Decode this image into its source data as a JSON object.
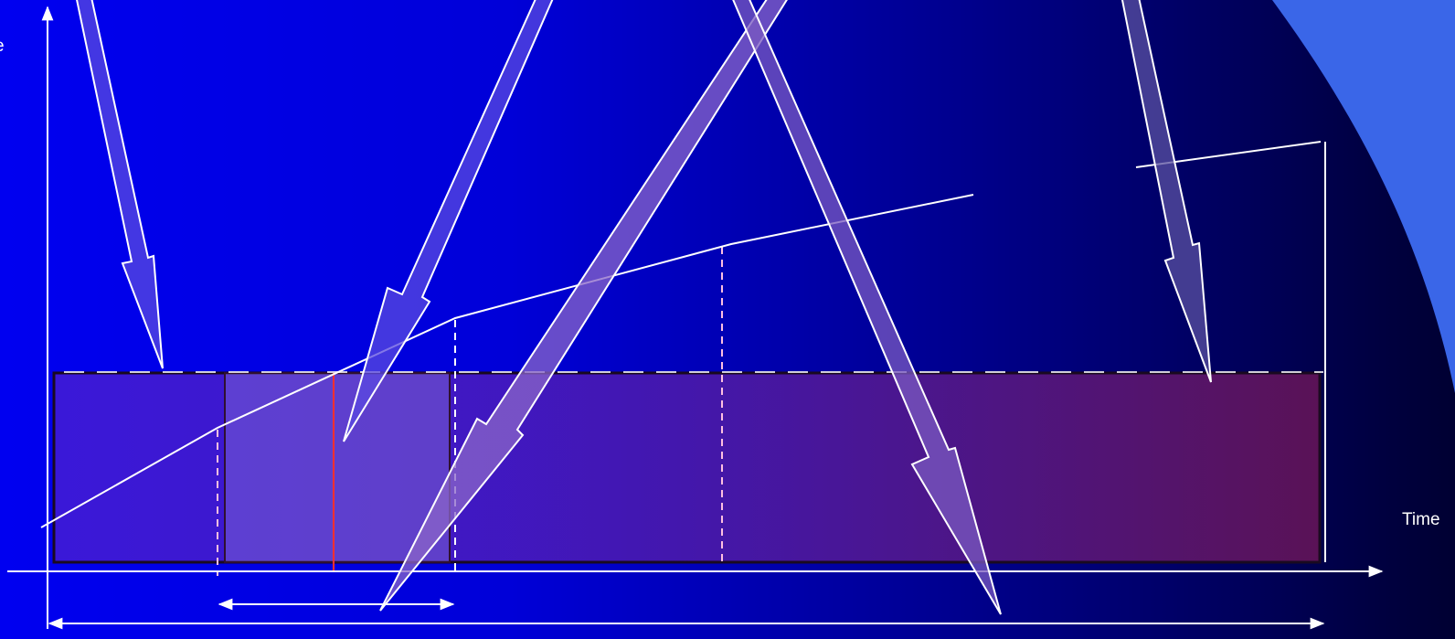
{
  "diagram": {
    "x_axis_label": "Time",
    "y_axis_label": "e",
    "colors": {
      "background_left": "#0000f0",
      "background_right": "#000032",
      "line": "#ffffff",
      "marker": "#ff3030",
      "arrow_fill_blue": "#4848e0",
      "arrow_fill_violet": "#8866c8",
      "block_fill": "#6a2aa0",
      "highlight_fill": "#8a7ac8",
      "corner_shape": "#3a66e8"
    }
  }
}
